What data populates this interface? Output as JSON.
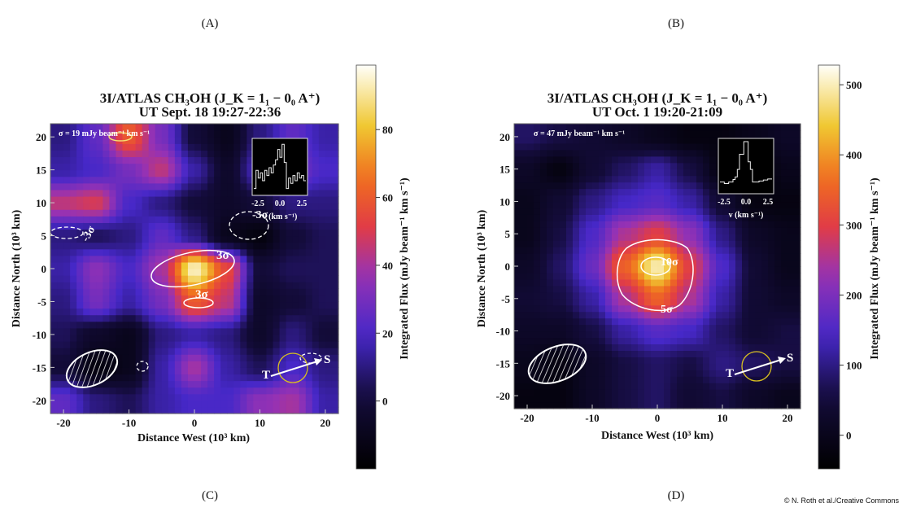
{
  "panel_letters": [
    "(A)",
    "(B)",
    "(C)",
    "(D)"
  ],
  "credit": "© N. Roth et al./Creative Commons",
  "chart_data": [
    {
      "type": "heatmap",
      "title": "3I/ATLAS CH₃OH (J_K = 1₁ − 0₀ A⁺)",
      "subtitle": "UT Sept. 18 19:27-22:36",
      "xlabel": "Distance West (10³ km)",
      "ylabel": "Distance North (10³ km)",
      "colorbar_label": "Integrated Flux (mJy beam⁻¹ km s⁻¹)",
      "xlim": [
        -22,
        22
      ],
      "ylim": [
        -22,
        22
      ],
      "xticks": [
        "-20",
        "-10",
        "0",
        "10",
        "20"
      ],
      "yticks": [
        "20",
        "15",
        "10",
        "5",
        "0",
        "-5",
        "-10",
        "-15",
        "-20"
      ],
      "colorbar_range": [
        -20,
        99
      ],
      "colorbar_ticks": [
        "80",
        "60",
        "40",
        "20",
        "0"
      ],
      "sigma_note": "σ = 19 mJy beam⁻¹ km s⁻¹",
      "grid_x": [
        -20,
        -15,
        -10,
        -5,
        0,
        5,
        10,
        15,
        20
      ],
      "grid_y": [
        20,
        15,
        10,
        5,
        0,
        -5,
        -10,
        -15,
        -20
      ],
      "values": [
        [
          10,
          25,
          60,
          30,
          0,
          -10,
          10,
          25,
          15
        ],
        [
          15,
          20,
          30,
          45,
          15,
          -5,
          20,
          30,
          20
        ],
        [
          45,
          50,
          20,
          10,
          0,
          -5,
          0,
          10,
          10
        ],
        [
          10,
          5,
          10,
          25,
          10,
          -10,
          -15,
          0,
          5
        ],
        [
          15,
          35,
          20,
          40,
          95,
          55,
          0,
          5,
          5
        ],
        [
          10,
          30,
          15,
          30,
          60,
          45,
          -5,
          0,
          5
        ],
        [
          5,
          -5,
          -10,
          10,
          15,
          10,
          -5,
          10,
          0
        ],
        [
          0,
          -15,
          -10,
          15,
          40,
          15,
          5,
          20,
          10
        ],
        [
          25,
          10,
          5,
          15,
          20,
          20,
          35,
          40,
          15
        ]
      ],
      "contour_labels": [
        "3σ",
        "3σ",
        "-3σ",
        "-3σ"
      ],
      "inset": {
        "xticks": [
          "-2.5",
          "0.0",
          "2.5"
        ],
        "xlabel": "v (km s⁻¹)",
        "spectrum": [
          0.1,
          0.45,
          0.3,
          0.4,
          0.25,
          0.45,
          0.35,
          0.5,
          0.4,
          0.55,
          0.65,
          0.85,
          0.7,
          0.95,
          0.6,
          0.1,
          0.3,
          0.2,
          0.35,
          0.25,
          0.4,
          0.3,
          0.35,
          0.25
        ]
      },
      "labels": {
        "tail": "T",
        "sun": "S"
      },
      "colors": {
        "contour": "#ffffff",
        "circle": "#d8c020"
      }
    },
    {
      "type": "heatmap",
      "title": "3I/ATLAS CH₃OH (J_K = 1₁ − 0₀ A⁺)",
      "subtitle": "UT Oct. 1 19:20-21:09",
      "xlabel": "Distance West (10³ km)",
      "ylabel": "Distance North (10³ km)",
      "colorbar_label": "Integrated Flux (mJy beam⁻¹ km s⁻¹)",
      "xlim": [
        -22,
        22
      ],
      "ylim": [
        -22,
        22
      ],
      "xticks": [
        "-20",
        "-10",
        "0",
        "10",
        "20"
      ],
      "yticks": [
        "20",
        "15",
        "10",
        "5",
        "0",
        "-5",
        "-10",
        "-15",
        "-20"
      ],
      "colorbar_range": [
        -48,
        528
      ],
      "colorbar_ticks": [
        "500",
        "400",
        "300",
        "200",
        "100",
        "0"
      ],
      "sigma_note": "σ = 47 mJy beam⁻¹ km s⁻¹",
      "grid_x": [
        -20,
        -15,
        -10,
        -5,
        0,
        5,
        10,
        15,
        20
      ],
      "grid_y": [
        20,
        15,
        10,
        5,
        0,
        -5,
        -10,
        -15,
        -20
      ],
      "values": [
        [
          80,
          60,
          40,
          20,
          0,
          -20,
          -20,
          0,
          20
        ],
        [
          20,
          -20,
          40,
          80,
          120,
          60,
          -20,
          -40,
          0
        ],
        [
          0,
          40,
          100,
          140,
          160,
          120,
          40,
          -20,
          -20
        ],
        [
          0,
          60,
          150,
          250,
          300,
          220,
          100,
          20,
          0
        ],
        [
          20,
          80,
          180,
          350,
          500,
          300,
          150,
          40,
          0
        ],
        [
          40,
          60,
          120,
          250,
          350,
          250,
          120,
          40,
          20
        ],
        [
          20,
          20,
          60,
          120,
          160,
          140,
          80,
          40,
          60
        ],
        [
          0,
          -20,
          20,
          60,
          80,
          60,
          100,
          80,
          60
        ],
        [
          -20,
          -20,
          20,
          60,
          80,
          40,
          60,
          20,
          0
        ]
      ],
      "contour_labels": [
        "10σ",
        "5σ"
      ],
      "inset": {
        "xticks": [
          "-2.5",
          "0.0",
          "2.5"
        ],
        "xlabel": "v (km s⁻¹)",
        "spectrum": [
          0.2,
          0.2,
          0.17,
          0.17,
          0.2,
          0.2,
          0.25,
          0.3,
          0.45,
          0.75,
          0.75,
          1.0,
          1.0,
          0.6,
          0.45,
          0.2,
          0.2,
          0.2,
          0.22,
          0.22,
          0.24,
          0.24,
          0.26,
          0.26
        ]
      },
      "labels": {
        "tail": "T",
        "sun": "S"
      },
      "colors": {
        "contour": "#ffffff",
        "circle": "#d8c020"
      }
    }
  ]
}
